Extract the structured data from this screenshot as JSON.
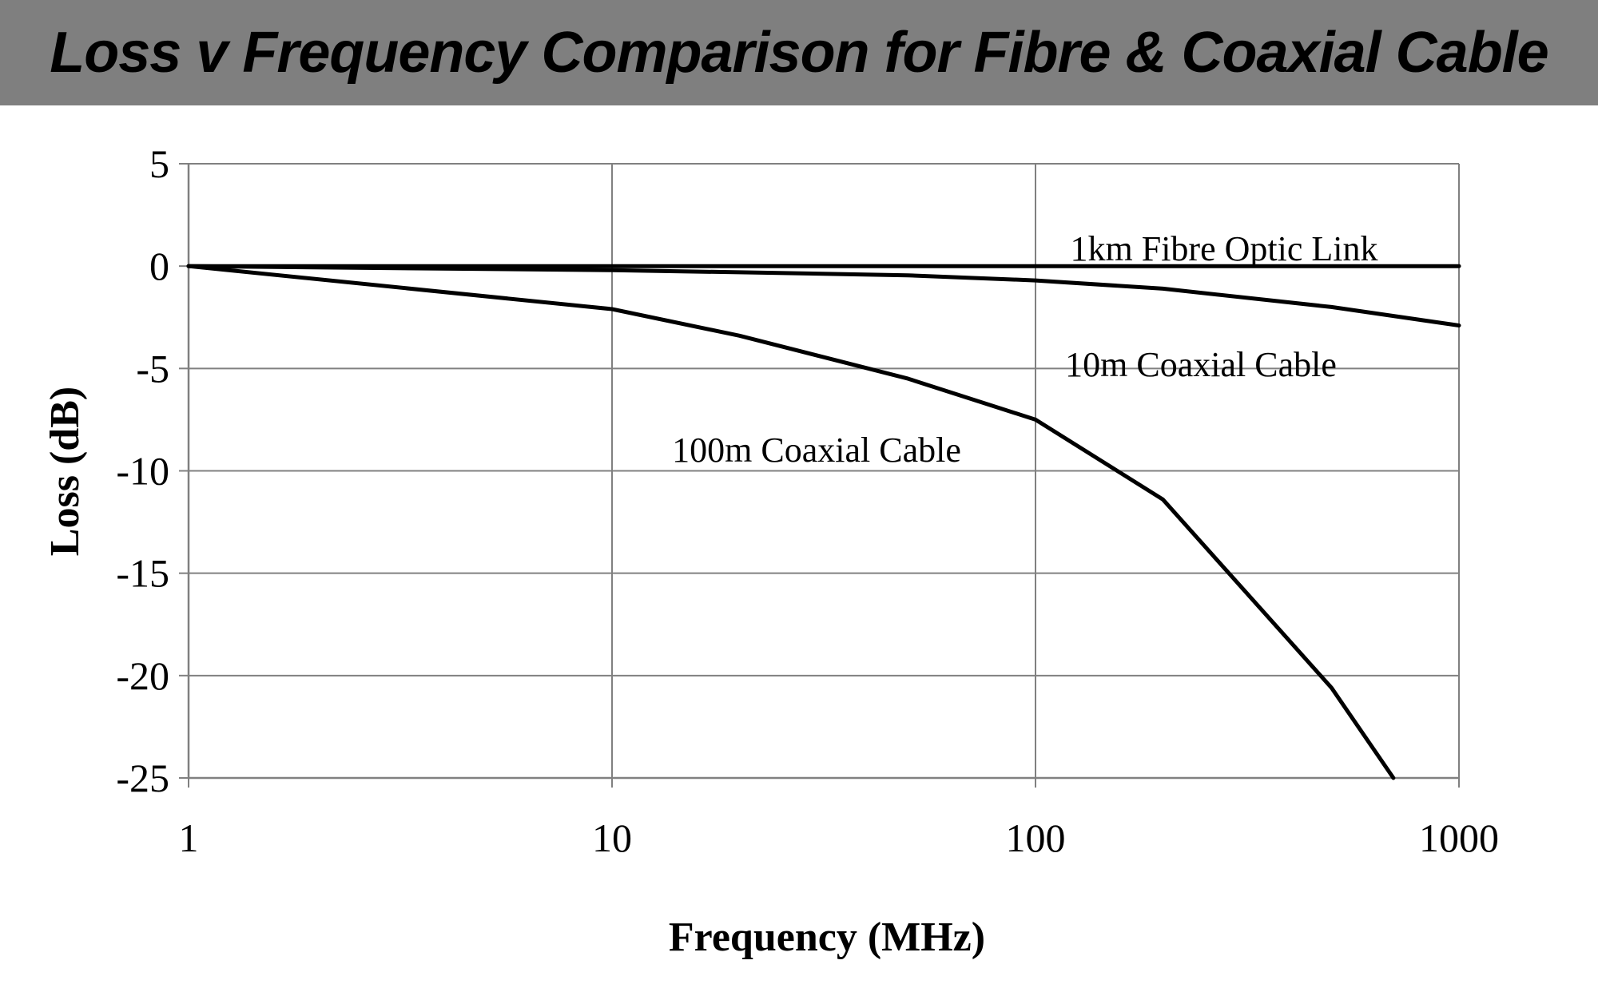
{
  "title": "Loss v Frequency Comparison for Fibre & Coaxial Cable",
  "chart_data": {
    "type": "line",
    "title": "Loss v Frequency Comparison for Fibre & Coaxial Cable",
    "xlabel": "Frequency (MHz)",
    "ylabel": "Loss (dB)",
    "xscale": "log",
    "xlim": [
      1,
      1000
    ],
    "ylim": [
      -25,
      5
    ],
    "xticks": [
      1,
      10,
      100,
      1000
    ],
    "xtick_labels": [
      "1",
      "10",
      "100",
      "1000"
    ],
    "yticks": [
      5,
      0,
      -5,
      -10,
      -15,
      -20,
      -25
    ],
    "ytick_labels": [
      "5",
      "0",
      "-5",
      "-10",
      "-15",
      "-20",
      "-25"
    ],
    "grid": true,
    "series": [
      {
        "name": "1km Fibre Optic Link",
        "x": [
          1,
          10,
          100,
          1000
        ],
        "y": [
          0,
          0,
          0,
          0
        ]
      },
      {
        "name": "10m Coaxial Cable",
        "x": [
          1,
          10,
          20,
          50,
          100,
          200,
          500,
          1000
        ],
        "y": [
          0,
          -0.2,
          -0.3,
          -0.45,
          -0.7,
          -1.1,
          -2.0,
          -2.9
        ]
      },
      {
        "name": "100m Coaxial Cable",
        "x": [
          1,
          10,
          20,
          50,
          100,
          200,
          500,
          700
        ],
        "y": [
          0,
          -2.1,
          -3.4,
          -5.5,
          -7.5,
          -11.4,
          -20.6,
          -25.0
        ]
      }
    ],
    "colors": {
      "line": "#000000",
      "grid": "#808080",
      "title_bar": "#7f7f7f"
    }
  }
}
